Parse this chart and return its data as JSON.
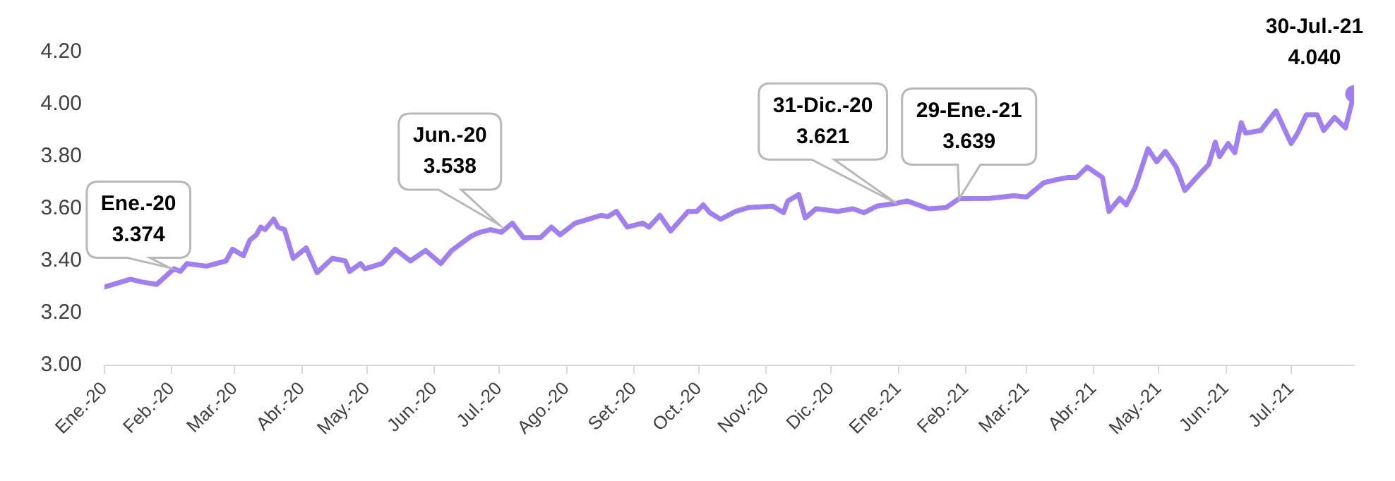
{
  "chart_data": {
    "type": "line",
    "x": [
      "2020-01-01",
      "2020-01-13",
      "2020-01-18",
      "2020-01-25",
      "2020-02-02",
      "2020-02-05",
      "2020-02-08",
      "2020-02-17",
      "2020-02-26",
      "2020-02-29",
      "2020-03-05",
      "2020-03-08",
      "2020-03-11",
      "2020-03-13",
      "2020-03-15",
      "2020-03-19",
      "2020-03-21",
      "2020-03-24",
      "2020-03-28",
      "2020-04-03",
      "2020-04-08",
      "2020-04-15",
      "2020-04-21",
      "2020-04-23",
      "2020-04-28",
      "2020-04-30",
      "2020-05-08",
      "2020-05-14",
      "2020-05-21",
      "2020-05-28",
      "2020-06-04",
      "2020-06-09",
      "2020-06-18",
      "2020-06-22",
      "2020-06-27",
      "2020-07-02",
      "2020-07-07",
      "2020-07-12",
      "2020-07-20",
      "2020-07-25",
      "2020-07-29",
      "2020-08-05",
      "2020-08-11",
      "2020-08-17",
      "2020-08-20",
      "2020-08-24",
      "2020-08-29",
      "2020-09-05",
      "2020-09-08",
      "2020-09-13",
      "2020-09-18",
      "2020-09-26",
      "2020-09-30",
      "2020-10-03",
      "2020-10-06",
      "2020-10-11",
      "2020-10-18",
      "2020-10-24",
      "2020-11-04",
      "2020-11-09",
      "2020-11-11",
      "2020-11-16",
      "2020-11-19",
      "2020-11-24",
      "2020-12-04",
      "2020-12-11",
      "2020-12-16",
      "2020-12-22",
      "2020-12-31",
      "2021-01-05",
      "2021-01-15",
      "2021-01-23",
      "2021-01-29",
      "2021-02-12",
      "2021-02-23",
      "2021-03-01",
      "2021-03-09",
      "2021-03-14",
      "2021-03-20",
      "2021-03-24",
      "2021-03-29",
      "2021-04-05",
      "2021-04-08",
      "2021-04-13",
      "2021-04-16",
      "2021-04-20",
      "2021-04-26",
      "2021-04-30",
      "2021-05-04",
      "2021-05-09",
      "2021-05-13",
      "2021-05-20",
      "2021-05-24",
      "2021-05-27",
      "2021-05-29",
      "2021-06-02",
      "2021-06-05",
      "2021-06-08",
      "2021-06-10",
      "2021-06-17",
      "2021-06-24",
      "2021-07-01",
      "2021-07-04",
      "2021-07-08",
      "2021-07-13",
      "2021-07-16",
      "2021-07-21",
      "2021-07-26",
      "2021-07-30"
    ],
    "series": [
      {
        "color": "#a07ff2",
        "values": [
          3.3,
          3.33,
          3.32,
          3.31,
          3.37,
          3.36,
          3.39,
          3.38,
          3.4,
          3.445,
          3.42,
          3.48,
          3.5,
          3.53,
          3.52,
          3.56,
          3.53,
          3.52,
          3.41,
          3.45,
          3.355,
          3.41,
          3.4,
          3.36,
          3.39,
          3.37,
          3.39,
          3.445,
          3.4,
          3.44,
          3.39,
          3.44,
          3.495,
          3.51,
          3.52,
          3.51,
          3.545,
          3.49,
          3.49,
          3.53,
          3.5,
          3.545,
          3.56,
          3.575,
          3.57,
          3.59,
          3.53,
          3.545,
          3.53,
          3.575,
          3.515,
          3.59,
          3.59,
          3.615,
          3.585,
          3.56,
          3.59,
          3.605,
          3.61,
          3.585,
          3.63,
          3.655,
          3.565,
          3.6,
          3.59,
          3.6,
          3.585,
          3.61,
          3.621,
          3.63,
          3.6,
          3.605,
          3.639,
          3.64,
          3.65,
          3.645,
          3.7,
          3.71,
          3.72,
          3.72,
          3.76,
          3.72,
          3.59,
          3.64,
          3.615,
          3.68,
          3.83,
          3.78,
          3.82,
          3.76,
          3.67,
          3.735,
          3.77,
          3.855,
          3.8,
          3.85,
          3.815,
          3.93,
          3.89,
          3.9,
          3.975,
          3.85,
          3.89,
          3.96,
          3.96,
          3.9,
          3.95,
          3.91,
          4.04
        ]
      }
    ],
    "xlim": [
      "2020-01-01",
      "2021-07-30"
    ],
    "xticks": [
      {
        "value": "2020-01-01",
        "label": "Ene.-20"
      },
      {
        "value": "2020-02-01",
        "label": "Feb.-20"
      },
      {
        "value": "2020-03-01",
        "label": "Mar.-20"
      },
      {
        "value": "2020-04-01",
        "label": "Abr.-20"
      },
      {
        "value": "2020-05-01",
        "label": "May.-20"
      },
      {
        "value": "2020-06-01",
        "label": "Jun.-20"
      },
      {
        "value": "2020-07-01",
        "label": "Jul.-20"
      },
      {
        "value": "2020-08-01",
        "label": "Ago.-20"
      },
      {
        "value": "2020-09-01",
        "label": "Set.-20"
      },
      {
        "value": "2020-10-01",
        "label": "Oct.-20"
      },
      {
        "value": "2020-11-01",
        "label": "Nov.-20"
      },
      {
        "value": "2020-12-01",
        "label": "Dic.-20"
      },
      {
        "value": "2021-01-01",
        "label": "Ene.-21"
      },
      {
        "value": "2021-02-01",
        "label": "Feb.-21"
      },
      {
        "value": "2021-03-01",
        "label": "Mar.-21"
      },
      {
        "value": "2021-04-01",
        "label": "Abr.-21"
      },
      {
        "value": "2021-05-01",
        "label": "May.-21"
      },
      {
        "value": "2021-06-01",
        "label": "Jun.-21"
      },
      {
        "value": "2021-07-01",
        "label": "Jul.-21"
      }
    ],
    "ylim": [
      3,
      4.2
    ],
    "yticks": [
      {
        "value": 3,
        "label": "3.00"
      },
      {
        "value": 3.2,
        "label": "3.20"
      },
      {
        "value": 3.4,
        "label": "3.40"
      },
      {
        "value": 3.6,
        "label": "3.60"
      },
      {
        "value": 3.8,
        "label": "3.80"
      },
      {
        "value": 4,
        "label": "4.00"
      },
      {
        "value": 4.2,
        "label": "4.20"
      }
    ],
    "annotations": [
      {
        "text": "Ene.-20\n3.374",
        "x": "2020-01-31",
        "y": 3.374
      },
      {
        "text": "Jun.-20\n3.538",
        "x": "2020-07-01",
        "y": 3.538
      },
      {
        "text": "31-Dic.-20\n3.621",
        "x": "2020-12-31",
        "y": 3.621
      },
      {
        "text": "29-Ene.-21\n3.639",
        "x": "2021-01-29",
        "y": 3.639
      },
      {
        "text": "30-Jul.-21\n4.040",
        "x": "2021-07-30",
        "y": 4.04
      }
    ]
  }
}
